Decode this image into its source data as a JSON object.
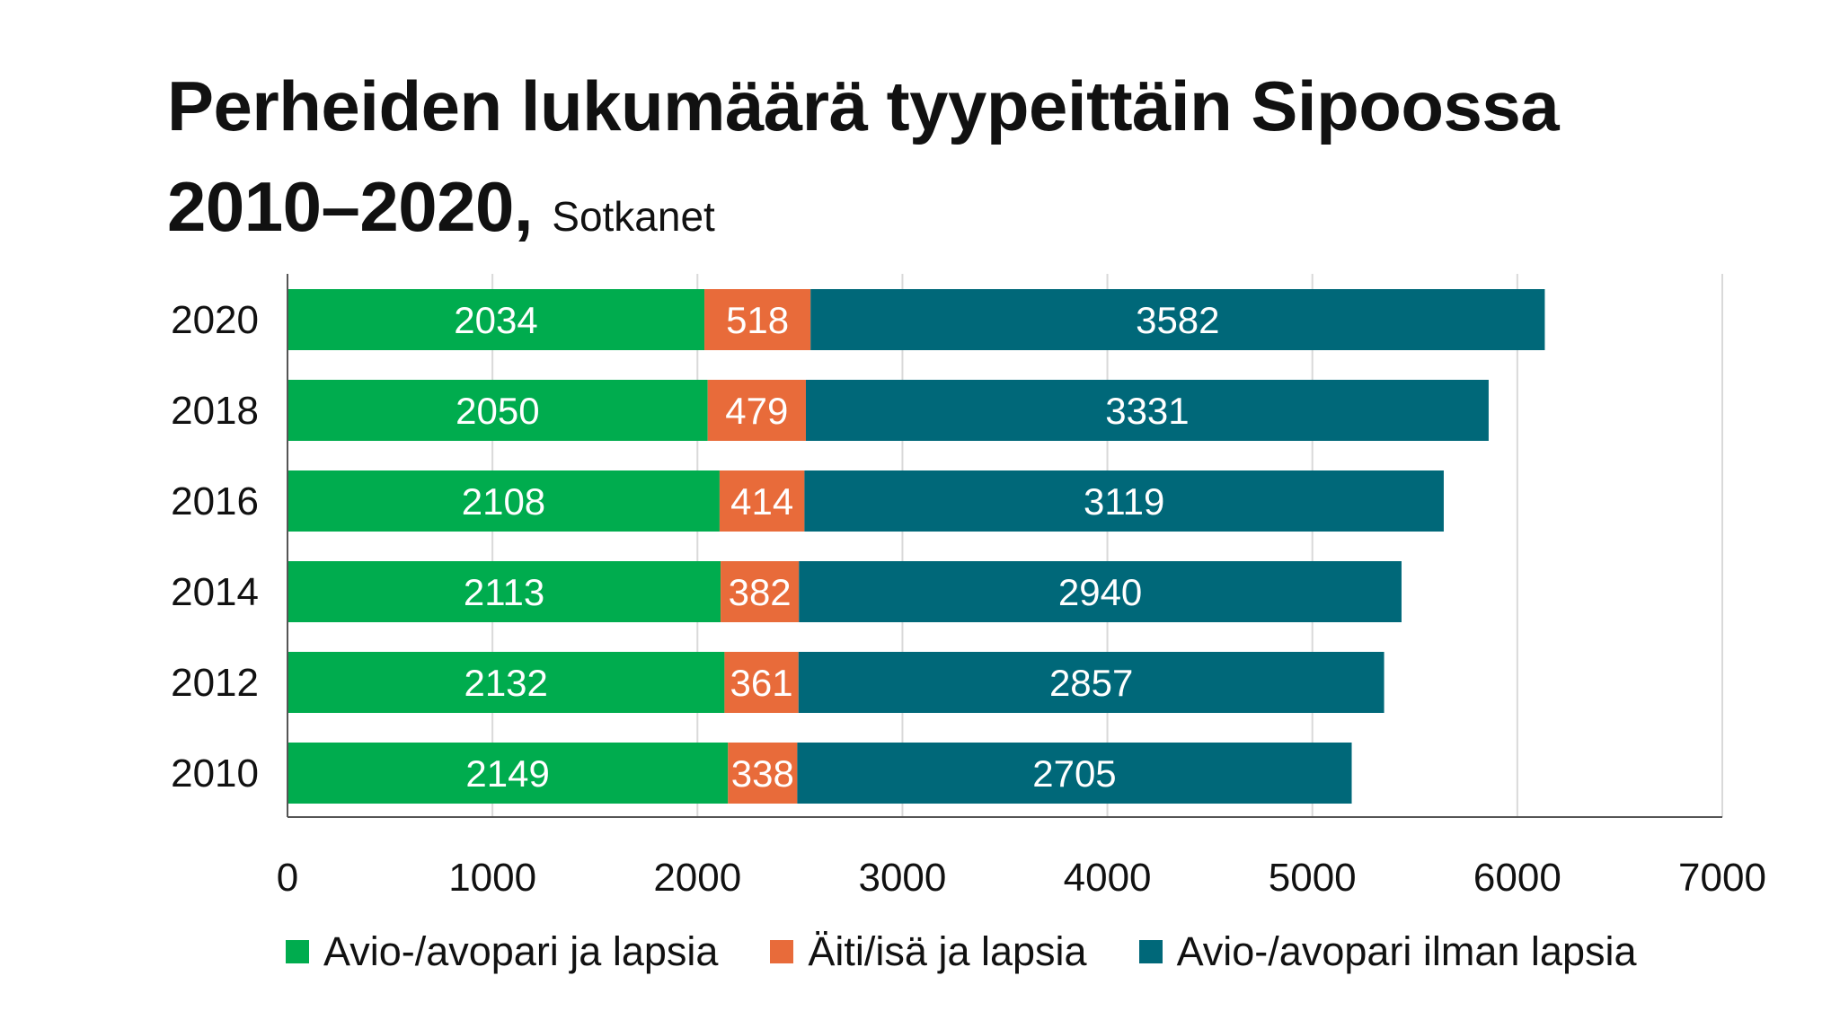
{
  "chart_data": {
    "type": "bar",
    "orientation": "horizontal",
    "stacked": true,
    "title": "Perheiden lukumäärä tyypeittäin Sipoossa",
    "title_line2": "2010–2020,",
    "subtitle": "Sotkanet",
    "categories": [
      "2020",
      "2018",
      "2016",
      "2014",
      "2012",
      "2010"
    ],
    "series": [
      {
        "name": "Avio-/avopari ja lapsia",
        "color": "#00ac4e",
        "values": [
          2034,
          2050,
          2108,
          2113,
          2132,
          2149
        ]
      },
      {
        "name": "Äiti/isä ja lapsia",
        "color": "#e86b3a",
        "values": [
          518,
          479,
          414,
          382,
          361,
          338
        ]
      },
      {
        "name": "Avio-/avopari ilman lapsia",
        "color": "#006879",
        "values": [
          3582,
          3331,
          3119,
          2940,
          2857,
          2705
        ]
      }
    ],
    "xlim": [
      0,
      7000
    ],
    "xticks": [
      "0",
      "1000",
      "2000",
      "3000",
      "4000",
      "5000",
      "6000",
      "7000"
    ],
    "grid": true,
    "legend_position": "bottom",
    "data_labels": true
  }
}
